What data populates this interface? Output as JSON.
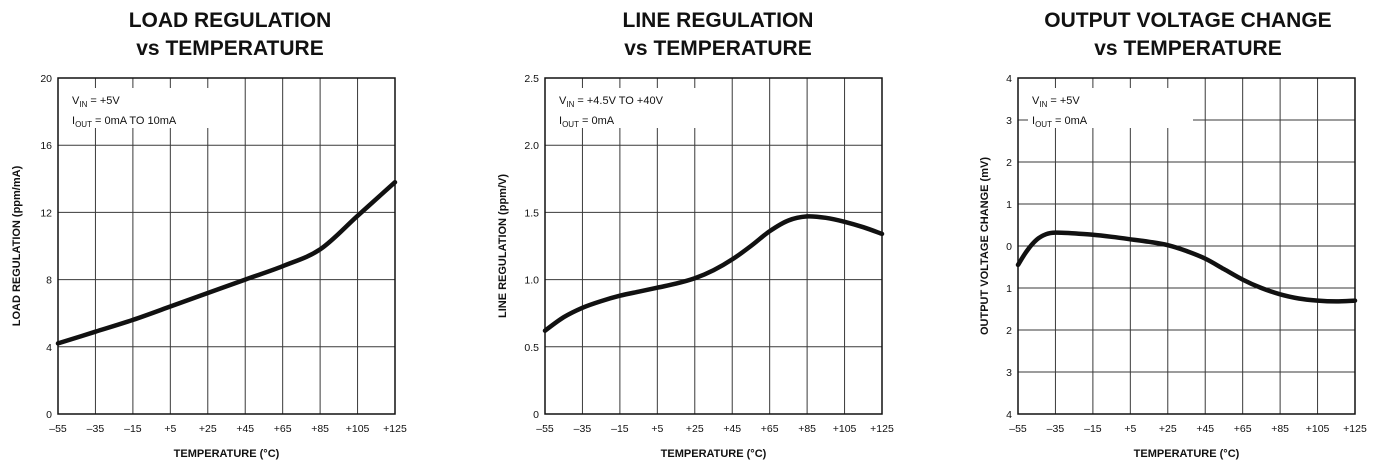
{
  "chart_data": [
    {
      "type": "line",
      "title_line1": "LOAD REGULATION",
      "title_line2": "vs TEMPERATURE",
      "xlabel": "TEMPERATURE (°C)",
      "ylabel": "LOAD REGULATION (ppm/mA)",
      "xlim": [
        -55,
        125
      ],
      "ylim": [
        0,
        20
      ],
      "x_ticks": [
        -55,
        -35,
        -15,
        5,
        25,
        45,
        65,
        85,
        105,
        125
      ],
      "x_tick_labels": [
        "–55",
        "–35",
        "–15",
        "+5",
        "+25",
        "+45",
        "+65",
        "+85",
        "+105",
        "+125"
      ],
      "y_ticks": [
        0,
        4,
        8,
        12,
        16,
        20
      ],
      "y_tick_labels": [
        "0",
        "4",
        "8",
        "12",
        "16",
        "20"
      ],
      "annotation": [
        {
          "main": "V",
          "sub": "IN",
          "rest": " = +5V"
        },
        {
          "main": "I",
          "sub": "OUT",
          "rest": " = 0mA TO 10mA"
        }
      ],
      "series": [
        {
          "x": [
            -55,
            -35,
            -15,
            5,
            25,
            45,
            65,
            85,
            105,
            125
          ],
          "y": [
            4.2,
            4.9,
            5.6,
            6.4,
            7.2,
            8.0,
            8.8,
            9.8,
            11.8,
            13.8
          ]
        }
      ]
    },
    {
      "type": "line",
      "title_line1": "LINE REGULATION",
      "title_line2": "vs TEMPERATURE",
      "xlabel": "TEMPERATURE (°C)",
      "ylabel": "LINE REGULATION (ppm/V)",
      "xlim": [
        -55,
        125
      ],
      "ylim": [
        0,
        2.5
      ],
      "x_ticks": [
        -55,
        -35,
        -15,
        5,
        25,
        45,
        65,
        85,
        105,
        125
      ],
      "x_tick_labels": [
        "–55",
        "–35",
        "–15",
        "+5",
        "+25",
        "+45",
        "+65",
        "+85",
        "+105",
        "+125"
      ],
      "y_ticks": [
        0,
        0.5,
        1.0,
        1.5,
        2.0,
        2.5
      ],
      "y_tick_labels": [
        "0",
        "0.5",
        "1.0",
        "1.5",
        "2.0",
        "2.5"
      ],
      "annotation": [
        {
          "main": "V",
          "sub": "IN",
          "rest": " = +4.5V TO +40V"
        },
        {
          "main": "I",
          "sub": "OUT",
          "rest": " = 0mA"
        }
      ],
      "series": [
        {
          "x": [
            -55,
            -45,
            -35,
            -25,
            -15,
            -5,
            5,
            15,
            25,
            35,
            45,
            55,
            65,
            75,
            85,
            95,
            105,
            115,
            125
          ],
          "y": [
            0.62,
            0.72,
            0.79,
            0.84,
            0.88,
            0.91,
            0.94,
            0.97,
            1.01,
            1.07,
            1.15,
            1.25,
            1.36,
            1.44,
            1.47,
            1.46,
            1.43,
            1.39,
            1.34
          ]
        }
      ]
    },
    {
      "type": "line",
      "title_line1": "OUTPUT VOLTAGE CHANGE",
      "title_line2": "vs TEMPERATURE",
      "xlabel": "TEMPERATURE (°C)",
      "ylabel": "OUTPUT VOLTAGE CHANGE (mV)",
      "xlim": [
        -55,
        125
      ],
      "ylim": [
        -4,
        4
      ],
      "x_ticks": [
        -55,
        -35,
        -15,
        5,
        25,
        45,
        65,
        85,
        105,
        125
      ],
      "x_tick_labels": [
        "–55",
        "–35",
        "–15",
        "+5",
        "+25",
        "+45",
        "+65",
        "+85",
        "+105",
        "+125"
      ],
      "y_ticks": [
        -4,
        -3,
        -2,
        -1,
        0,
        1,
        2,
        3,
        4
      ],
      "y_tick_labels": [
        "4",
        "3",
        "2",
        "1",
        "0",
        "1",
        "2",
        "3",
        "4"
      ],
      "annotation": [
        {
          "main": "V",
          "sub": "IN",
          "rest": " = +5V"
        },
        {
          "main": "I",
          "sub": "OUT",
          "rest": " = 0mA"
        }
      ],
      "series": [
        {
          "x": [
            -55,
            -50,
            -45,
            -40,
            -35,
            -25,
            -15,
            -5,
            5,
            15,
            25,
            35,
            45,
            55,
            65,
            75,
            85,
            95,
            105,
            115,
            125
          ],
          "y": [
            -0.45,
            -0.1,
            0.15,
            0.28,
            0.32,
            0.3,
            0.27,
            0.22,
            0.16,
            0.1,
            0.02,
            -0.12,
            -0.3,
            -0.55,
            -0.8,
            -1.0,
            -1.15,
            -1.25,
            -1.3,
            -1.32,
            -1.3
          ]
        }
      ]
    }
  ]
}
